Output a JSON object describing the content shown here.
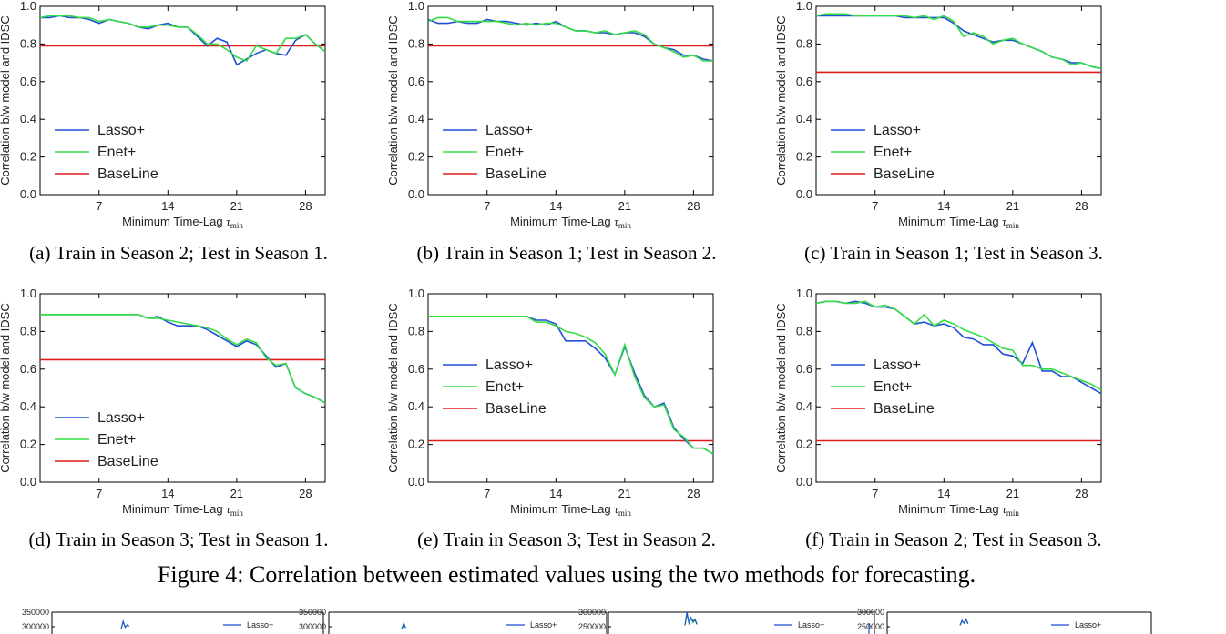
{
  "chart_data": [
    {
      "type": "line",
      "caption": "(a) Train in Season 2; Test in Season 1.",
      "xlabel": "Minimum Time-Lag",
      "ylabel": "Correlation b/w model and IDSC",
      "xlim": [
        1,
        30
      ],
      "ylim": [
        0.0,
        1.0
      ],
      "xticks": [
        7,
        14,
        21,
        28
      ],
      "yticks": [
        "0.0",
        "0.2",
        "0.4",
        "0.6",
        "0.8",
        "1.0"
      ],
      "legend_position": "lower-left",
      "x": [
        1,
        2,
        3,
        4,
        5,
        6,
        7,
        8,
        9,
        10,
        11,
        12,
        13,
        14,
        15,
        16,
        17,
        18,
        19,
        20,
        21,
        22,
        23,
        24,
        25,
        26,
        27,
        28,
        29,
        30
      ],
      "series": [
        {
          "name": "Lasso+",
          "color": "#1f4fd6",
          "values": [
            0.94,
            0.94,
            0.95,
            0.94,
            0.94,
            0.93,
            0.91,
            0.93,
            0.92,
            0.91,
            0.89,
            0.88,
            0.9,
            0.91,
            0.89,
            0.89,
            0.84,
            0.79,
            0.83,
            0.81,
            0.69,
            0.72,
            0.75,
            0.77,
            0.75,
            0.74,
            0.82,
            0.85,
            0.8,
            0.76
          ]
        },
        {
          "name": "Enet+",
          "color": "#33dd44",
          "values": [
            0.94,
            0.95,
            0.95,
            0.95,
            0.94,
            0.94,
            0.92,
            0.93,
            0.92,
            0.91,
            0.89,
            0.89,
            0.9,
            0.9,
            0.89,
            0.89,
            0.85,
            0.8,
            0.8,
            0.77,
            0.73,
            0.71,
            0.79,
            0.77,
            0.75,
            0.83,
            0.83,
            0.85,
            0.8,
            0.76
          ]
        },
        {
          "name": "BaseLine",
          "color": "#dd1c1c",
          "values": [
            0.79,
            0.79,
            0.79,
            0.79,
            0.79,
            0.79,
            0.79,
            0.79,
            0.79,
            0.79,
            0.79,
            0.79,
            0.79,
            0.79,
            0.79,
            0.79,
            0.79,
            0.79,
            0.79,
            0.79,
            0.79,
            0.79,
            0.79,
            0.79,
            0.79,
            0.79,
            0.79,
            0.79,
            0.79,
            0.79
          ]
        }
      ]
    },
    {
      "type": "line",
      "caption": "(b) Train in Season 1; Test in Season 2.",
      "xlabel": "Minimum Time-Lag",
      "ylabel": "Correlation b/w model and IDSC",
      "xlim": [
        1,
        30
      ],
      "ylim": [
        0.0,
        1.0
      ],
      "xticks": [
        7,
        14,
        21,
        28
      ],
      "yticks": [
        "0.0",
        "0.2",
        "0.4",
        "0.6",
        "0.8",
        "1.0"
      ],
      "legend_position": "lower-left",
      "x": [
        1,
        2,
        3,
        4,
        5,
        6,
        7,
        8,
        9,
        10,
        11,
        12,
        13,
        14,
        15,
        16,
        17,
        18,
        19,
        20,
        21,
        22,
        23,
        24,
        25,
        26,
        27,
        28,
        29,
        30
      ],
      "series": [
        {
          "name": "Lasso+",
          "color": "#1f4fd6",
          "values": [
            0.93,
            0.91,
            0.91,
            0.92,
            0.91,
            0.91,
            0.93,
            0.92,
            0.92,
            0.91,
            0.9,
            0.91,
            0.9,
            0.92,
            0.89,
            0.87,
            0.87,
            0.86,
            0.86,
            0.85,
            0.86,
            0.86,
            0.84,
            0.8,
            0.78,
            0.77,
            0.74,
            0.74,
            0.72,
            0.71
          ]
        },
        {
          "name": "Enet+",
          "color": "#33dd44",
          "values": [
            0.92,
            0.94,
            0.94,
            0.92,
            0.92,
            0.92,
            0.92,
            0.92,
            0.91,
            0.9,
            0.91,
            0.9,
            0.91,
            0.91,
            0.89,
            0.87,
            0.87,
            0.86,
            0.87,
            0.85,
            0.86,
            0.87,
            0.85,
            0.8,
            0.78,
            0.76,
            0.73,
            0.74,
            0.71,
            0.71
          ]
        },
        {
          "name": "BaseLine",
          "color": "#dd1c1c",
          "values": [
            0.79,
            0.79,
            0.79,
            0.79,
            0.79,
            0.79,
            0.79,
            0.79,
            0.79,
            0.79,
            0.79,
            0.79,
            0.79,
            0.79,
            0.79,
            0.79,
            0.79,
            0.79,
            0.79,
            0.79,
            0.79,
            0.79,
            0.79,
            0.79,
            0.79,
            0.79,
            0.79,
            0.79,
            0.79,
            0.79
          ]
        }
      ]
    },
    {
      "type": "line",
      "caption": "(c) Train in Season 1; Test in Season 3.",
      "xlabel": "Minimum Time-Lag",
      "ylabel": "Correlation b/w model and IDSC",
      "xlim": [
        1,
        30
      ],
      "ylim": [
        0.0,
        1.0
      ],
      "xticks": [
        7,
        14,
        21,
        28
      ],
      "yticks": [
        "0.0",
        "0.2",
        "0.4",
        "0.6",
        "0.8",
        "1.0"
      ],
      "legend_position": "lower-left",
      "x": [
        1,
        2,
        3,
        4,
        5,
        6,
        7,
        8,
        9,
        10,
        11,
        12,
        13,
        14,
        15,
        16,
        17,
        18,
        19,
        20,
        21,
        22,
        23,
        24,
        25,
        26,
        27,
        28,
        29,
        30
      ],
      "series": [
        {
          "name": "Lasso+",
          "color": "#1f4fd6",
          "values": [
            0.95,
            0.95,
            0.95,
            0.95,
            0.95,
            0.95,
            0.95,
            0.95,
            0.95,
            0.94,
            0.94,
            0.94,
            0.94,
            0.94,
            0.91,
            0.87,
            0.85,
            0.83,
            0.81,
            0.82,
            0.82,
            0.8,
            0.78,
            0.76,
            0.73,
            0.72,
            0.7,
            0.7,
            0.68,
            0.67
          ]
        },
        {
          "name": "Enet+",
          "color": "#33dd44",
          "values": [
            0.95,
            0.96,
            0.96,
            0.96,
            0.95,
            0.95,
            0.95,
            0.95,
            0.95,
            0.95,
            0.94,
            0.95,
            0.93,
            0.95,
            0.92,
            0.84,
            0.86,
            0.84,
            0.8,
            0.82,
            0.83,
            0.8,
            0.78,
            0.76,
            0.73,
            0.72,
            0.69,
            0.7,
            0.68,
            0.67
          ]
        },
        {
          "name": "BaseLine",
          "color": "#dd1c1c",
          "values": [
            0.65,
            0.65,
            0.65,
            0.65,
            0.65,
            0.65,
            0.65,
            0.65,
            0.65,
            0.65,
            0.65,
            0.65,
            0.65,
            0.65,
            0.65,
            0.65,
            0.65,
            0.65,
            0.65,
            0.65,
            0.65,
            0.65,
            0.65,
            0.65,
            0.65,
            0.65,
            0.65,
            0.65,
            0.65,
            0.65
          ]
        }
      ]
    },
    {
      "type": "line",
      "caption": "(d) Train in Season 3; Test in Season 1.",
      "xlabel": "Minimum Time-Lag",
      "ylabel": "Correlation b/w model and IDSC",
      "xlim": [
        1,
        30
      ],
      "ylim": [
        0.0,
        1.0
      ],
      "xticks": [
        7,
        14,
        21,
        28
      ],
      "yticks": [
        "0.0",
        "0.2",
        "0.4",
        "0.6",
        "0.8",
        "1.0"
      ],
      "legend_position": "lower-left",
      "x": [
        1,
        2,
        3,
        4,
        5,
        6,
        7,
        8,
        9,
        10,
        11,
        12,
        13,
        14,
        15,
        16,
        17,
        18,
        19,
        20,
        21,
        22,
        23,
        24,
        25,
        26,
        27,
        28,
        29,
        30
      ],
      "series": [
        {
          "name": "Lasso+",
          "color": "#1f4fd6",
          "values": [
            0.89,
            0.89,
            0.89,
            0.89,
            0.89,
            0.89,
            0.89,
            0.89,
            0.89,
            0.89,
            0.89,
            0.87,
            0.88,
            0.85,
            0.83,
            0.83,
            0.83,
            0.81,
            0.78,
            0.75,
            0.72,
            0.75,
            0.73,
            0.67,
            0.61,
            0.63,
            0.5,
            0.47,
            0.45,
            0.42
          ]
        },
        {
          "name": "Enet+",
          "color": "#33dd44",
          "values": [
            0.89,
            0.89,
            0.89,
            0.89,
            0.89,
            0.89,
            0.89,
            0.89,
            0.89,
            0.89,
            0.89,
            0.87,
            0.87,
            0.86,
            0.85,
            0.84,
            0.83,
            0.82,
            0.8,
            0.76,
            0.73,
            0.76,
            0.74,
            0.66,
            0.62,
            0.63,
            0.5,
            0.47,
            0.45,
            0.42
          ]
        },
        {
          "name": "BaseLine",
          "color": "#dd1c1c",
          "values": [
            0.65,
            0.65,
            0.65,
            0.65,
            0.65,
            0.65,
            0.65,
            0.65,
            0.65,
            0.65,
            0.65,
            0.65,
            0.65,
            0.65,
            0.65,
            0.65,
            0.65,
            0.65,
            0.65,
            0.65,
            0.65,
            0.65,
            0.65,
            0.65,
            0.65,
            0.65,
            0.65,
            0.65,
            0.65,
            0.65
          ]
        }
      ]
    },
    {
      "type": "line",
      "caption": "(e) Train in Season 3; Test in Season 2.",
      "xlabel": "Minimum Time-Lag",
      "ylabel": "Correlation b/w model and IDSC",
      "xlim": [
        1,
        30
      ],
      "ylim": [
        0.0,
        1.0
      ],
      "xticks": [
        7,
        14,
        21,
        28
      ],
      "yticks": [
        "0.0",
        "0.2",
        "0.4",
        "0.6",
        "0.8",
        "1.0"
      ],
      "legend_position": "center-left",
      "x": [
        1,
        2,
        3,
        4,
        5,
        6,
        7,
        8,
        9,
        10,
        11,
        12,
        13,
        14,
        15,
        16,
        17,
        18,
        19,
        20,
        21,
        22,
        23,
        24,
        25,
        26,
        27,
        28,
        29,
        30
      ],
      "series": [
        {
          "name": "Lasso+",
          "color": "#1f4fd6",
          "values": [
            0.88,
            0.88,
            0.88,
            0.88,
            0.88,
            0.88,
            0.88,
            0.88,
            0.88,
            0.88,
            0.88,
            0.86,
            0.86,
            0.84,
            0.75,
            0.75,
            0.75,
            0.71,
            0.66,
            0.57,
            0.72,
            0.58,
            0.46,
            0.4,
            0.42,
            0.29,
            0.23,
            0.18,
            0.18,
            0.15
          ]
        },
        {
          "name": "Enet+",
          "color": "#33dd44",
          "values": [
            0.88,
            0.88,
            0.88,
            0.88,
            0.88,
            0.88,
            0.88,
            0.88,
            0.88,
            0.88,
            0.88,
            0.85,
            0.85,
            0.83,
            0.8,
            0.79,
            0.77,
            0.74,
            0.68,
            0.57,
            0.73,
            0.56,
            0.45,
            0.4,
            0.41,
            0.28,
            0.24,
            0.18,
            0.18,
            0.15
          ]
        },
        {
          "name": "BaseLine",
          "color": "#dd1c1c",
          "values": [
            0.22,
            0.22,
            0.22,
            0.22,
            0.22,
            0.22,
            0.22,
            0.22,
            0.22,
            0.22,
            0.22,
            0.22,
            0.22,
            0.22,
            0.22,
            0.22,
            0.22,
            0.22,
            0.22,
            0.22,
            0.22,
            0.22,
            0.22,
            0.22,
            0.22,
            0.22,
            0.22,
            0.22,
            0.22,
            0.22
          ]
        }
      ]
    },
    {
      "type": "line",
      "caption": "(f) Train in Season 2; Test in Season 3.",
      "xlabel": "Minimum Time-Lag",
      "ylabel": "Correlation b/w model and IDSC",
      "xlim": [
        1,
        30
      ],
      "ylim": [
        0.0,
        1.0
      ],
      "xticks": [
        7,
        14,
        21,
        28
      ],
      "yticks": [
        "0.0",
        "0.2",
        "0.4",
        "0.6",
        "0.8",
        "1.0"
      ],
      "legend_position": "center-left",
      "x": [
        1,
        2,
        3,
        4,
        5,
        6,
        7,
        8,
        9,
        10,
        11,
        12,
        13,
        14,
        15,
        16,
        17,
        18,
        19,
        20,
        21,
        22,
        23,
        24,
        25,
        26,
        27,
        28,
        29,
        30
      ],
      "series": [
        {
          "name": "Lasso+",
          "color": "#1f4fd6",
          "values": [
            0.95,
            0.96,
            0.96,
            0.95,
            0.96,
            0.95,
            0.93,
            0.93,
            0.92,
            0.88,
            0.84,
            0.85,
            0.83,
            0.84,
            0.82,
            0.77,
            0.76,
            0.73,
            0.73,
            0.68,
            0.67,
            0.63,
            0.74,
            0.59,
            0.59,
            0.56,
            0.56,
            0.53,
            0.5,
            0.47
          ]
        },
        {
          "name": "Enet+",
          "color": "#33dd44",
          "values": [
            0.95,
            0.96,
            0.96,
            0.95,
            0.95,
            0.96,
            0.93,
            0.94,
            0.92,
            0.88,
            0.84,
            0.89,
            0.83,
            0.86,
            0.84,
            0.81,
            0.79,
            0.77,
            0.74,
            0.71,
            0.7,
            0.62,
            0.62,
            0.6,
            0.6,
            0.58,
            0.56,
            0.54,
            0.52,
            0.49
          ]
        },
        {
          "name": "BaseLine",
          "color": "#dd1c1c",
          "values": [
            0.22,
            0.22,
            0.22,
            0.22,
            0.22,
            0.22,
            0.22,
            0.22,
            0.22,
            0.22,
            0.22,
            0.22,
            0.22,
            0.22,
            0.22,
            0.22,
            0.22,
            0.22,
            0.22,
            0.22,
            0.22,
            0.22,
            0.22,
            0.22,
            0.22,
            0.22,
            0.22,
            0.22,
            0.22,
            0.22
          ]
        }
      ]
    },
    {
      "type": "line",
      "caption": "",
      "yticks": [
        "350000",
        "300000"
      ],
      "ylim": [
        0,
        350000
      ],
      "legend": [
        "Lasso+"
      ],
      "series": [
        {
          "name": "Lasso+",
          "color": "#1f4fd6",
          "values": [
            292000,
            318000,
            298000,
            306000,
            302000
          ]
        },
        {
          "name": "",
          "color": "#33dd44",
          "values": [
            292000,
            318000,
            298000,
            306000,
            302000
          ]
        }
      ]
    },
    {
      "type": "line",
      "caption": "",
      "yticks": [
        "350000",
        "300000"
      ],
      "ylim": [
        0,
        350000
      ],
      "legend": [
        "Lasso+"
      ],
      "series": [
        {
          "name": "Lasso+",
          "color": "#1f4fd6",
          "values": [
            292000,
            312000,
            296000
          ]
        },
        {
          "name": "",
          "color": "#33dd44",
          "values": [
            292000,
            305000,
            296000
          ]
        }
      ]
    },
    {
      "type": "line",
      "caption": "",
      "yticks": [
        "300000",
        "250000"
      ],
      "ylim": [
        0,
        300000
      ],
      "legend": [
        "Lasso+"
      ],
      "series": [
        {
          "name": "Lasso+",
          "color": "#1f4fd6",
          "values": [
            255000,
            300000,
            262000,
            282000,
            268000,
            276000,
            258000
          ]
        },
        {
          "name": "",
          "color": "#33dd44",
          "values": [
            255000,
            292000,
            266000,
            278000,
            264000,
            272000,
            258000
          ]
        }
      ]
    },
    {
      "type": "line",
      "caption": "",
      "yticks": [
        "300000",
        "250000"
      ],
      "ylim": [
        0,
        300000
      ],
      "legend": [
        "Lasso+"
      ],
      "series": [
        {
          "name": "Lasso+",
          "color": "#1f4fd6",
          "values": [
            255000,
            272000,
            262000,
            276000,
            260000
          ]
        },
        {
          "name": "",
          "color": "#33dd44",
          "values": [
            255000,
            268000,
            264000,
            272000,
            260000
          ]
        }
      ]
    }
  ],
  "figure_caption": "Figure 4: Correlation between estimated values using the two methods for forecasting.",
  "tau_symbol": "τ",
  "tau_sub": "min"
}
